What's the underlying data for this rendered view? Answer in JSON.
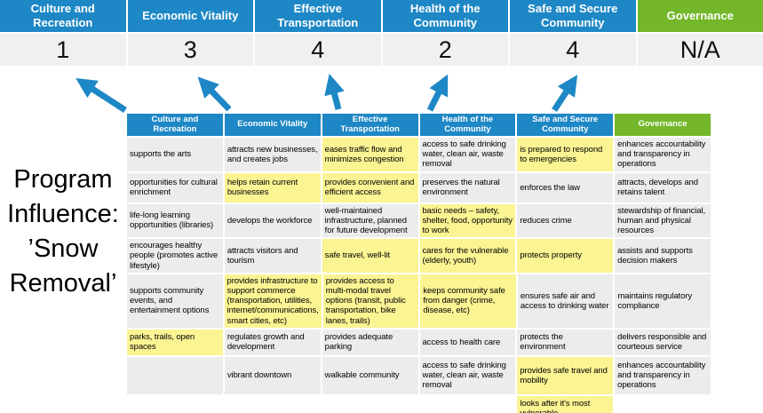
{
  "title": {
    "lines": [
      "Program",
      "Influence:",
      "’Snow",
      "Removal’"
    ]
  },
  "scoreboard": {
    "columns": [
      {
        "label": "Culture and Recreation",
        "score": "1",
        "color": "blue"
      },
      {
        "label": "Economic Vitality",
        "score": "3",
        "color": "blue"
      },
      {
        "label": "Effective Transportation",
        "score": "4",
        "color": "blue"
      },
      {
        "label": "Health of the Community",
        "score": "2",
        "color": "blue"
      },
      {
        "label": "Safe and Secure Community",
        "score": "4",
        "color": "blue"
      },
      {
        "label": "Governance",
        "score": "N/A",
        "color": "green"
      }
    ]
  },
  "arrows": {
    "description": "five arrows pointing from matrix column headers up to the score cells",
    "color": "#1E87C5",
    "count": 5
  },
  "matrix": {
    "headers": [
      "Culture and Recreation",
      "Economic Vitality",
      "Effective Transportation",
      "Health of the Community",
      "Safe and Secure Community",
      "Governance"
    ],
    "rows": [
      [
        {
          "text": "supports the arts",
          "highlight": false
        },
        {
          "text": "attracts new businesses, and creates jobs",
          "highlight": false
        },
        {
          "text": "eases traffic flow and minimizes congestion",
          "highlight": true
        },
        {
          "text": "access to safe drinking water, clean air, waste removal",
          "highlight": false
        },
        {
          "text": "is prepared to respond to emergencies",
          "highlight": true
        },
        {
          "text": "enhances accountability and transparency in operations",
          "highlight": false
        }
      ],
      [
        {
          "text": "opportunities for cultural enrichment",
          "highlight": false
        },
        {
          "text": "helps retain current businesses",
          "highlight": true
        },
        {
          "text": "provides convenient and efficient access",
          "highlight": true
        },
        {
          "text": "preserves the natural environment",
          "highlight": false
        },
        {
          "text": "enforces the law",
          "highlight": false
        },
        {
          "text": "attracts, develops and retains talent",
          "highlight": false
        }
      ],
      [
        {
          "text": "life-long learning opportunities (libraries)",
          "highlight": false
        },
        {
          "text": "develops the workforce",
          "highlight": false
        },
        {
          "text": "well-maintained infrastructure, planned for future development",
          "highlight": false
        },
        {
          "text": "basic needs – safety, shelter, food, opportunity to work",
          "highlight": true
        },
        {
          "text": "reduces crime",
          "highlight": false
        },
        {
          "text": "stewardship of financial, human and physical resources",
          "highlight": false
        }
      ],
      [
        {
          "text": "encourages healthy people (promotes active lifestyle)",
          "highlight": false
        },
        {
          "text": "attracts visitors and tourism",
          "highlight": false
        },
        {
          "text": "safe travel, well-lit",
          "highlight": true
        },
        {
          "text": "cares for the vulnerable (elderly, youth)",
          "highlight": true
        },
        {
          "text": "protects property",
          "highlight": true
        },
        {
          "text": "assists and supports decision makers",
          "highlight": false
        }
      ],
      [
        {
          "text": "supports community events, and entertainment options",
          "highlight": false
        },
        {
          "text": "provides infrastructure to support commerce (transportation, utilities, internet/communications, smart cities, etc)",
          "highlight": true
        },
        {
          "text": "provides access to multi-modal travel options (transit, public transportation, bike lanes, trails)",
          "highlight": true
        },
        {
          "text": "keeps community safe from danger (crime, disease, etc)",
          "highlight": true
        },
        {
          "text": "ensures safe air and access to drinking water",
          "highlight": false
        },
        {
          "text": "maintains regulatory compliance",
          "highlight": false
        }
      ],
      [
        {
          "text": "parks, trails, open spaces",
          "highlight": true
        },
        {
          "text": "regulates growth and development",
          "highlight": false
        },
        {
          "text": "provides adequate parking",
          "highlight": false
        },
        {
          "text": "access to health care",
          "highlight": false
        },
        {
          "text": "protects the environment",
          "highlight": false
        },
        {
          "text": "delivers responsible and courteous service",
          "highlight": false
        }
      ],
      [
        {
          "text": "",
          "highlight": false
        },
        {
          "text": "vibrant downtown",
          "highlight": false
        },
        {
          "text": "walkable community",
          "highlight": false
        },
        {
          "text": "access to safe drinking water, clean air, waste removal",
          "highlight": false
        },
        {
          "text": "provides safe travel and mobility",
          "highlight": true
        },
        {
          "text": "enhances accountability and transparency in operations",
          "highlight": false
        }
      ],
      [
        {
          "text": "",
          "highlight": false
        },
        {
          "text": "",
          "highlight": false
        },
        {
          "text": "",
          "highlight": false
        },
        {
          "text": "",
          "highlight": false
        },
        {
          "text": "looks after it's most vulnerable",
          "highlight": true
        },
        {
          "text": "",
          "highlight": false
        }
      ],
      [
        {
          "text": "",
          "highlight": false
        },
        {
          "text": "",
          "highlight": false
        },
        {
          "text": "",
          "highlight": false
        },
        {
          "text": "",
          "highlight": false
        },
        {
          "text": "",
          "highlight": false
        },
        {
          "text": "",
          "highlight": false
        }
      ]
    ]
  },
  "colors": {
    "header_blue": "#1E87C5",
    "header_green": "#74B72A",
    "highlight_yellow": "#FAF493",
    "cell_gray": "#ECECEC",
    "score_band_gray": "#F0F0F0"
  }
}
